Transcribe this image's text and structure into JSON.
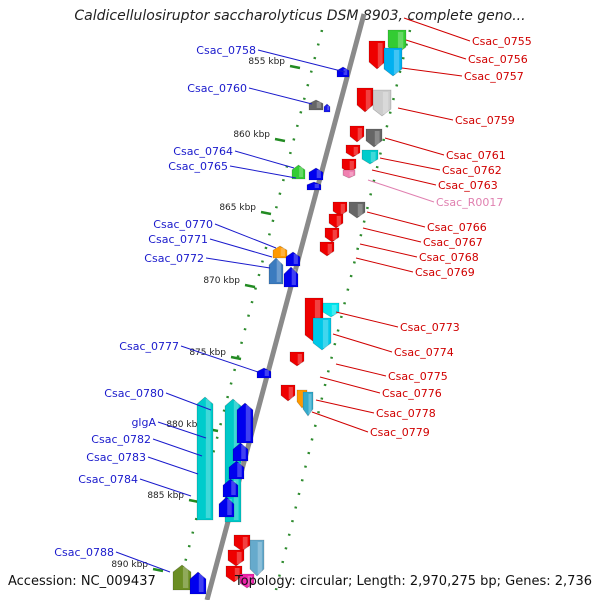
{
  "title": "Caldicellulosiruptor saccharolyticus DSM 8903, complete geno...",
  "footer": {
    "accession": "Accession: NC_009437",
    "topology": "Topology: circular; Length: 2,970,275 bp; Genes: 2,736"
  },
  "colors": {
    "left_label": "#1a1acc",
    "right_label": "#d00000",
    "rna_label": "#e080b0",
    "backbone": "#808080",
    "tick": "#228b22"
  },
  "kbp_ticks": [
    "855 kbp",
    "860 kbp",
    "865 kbp",
    "870 kbp",
    "875 kbp",
    "880 kbp",
    "885 kbp",
    "890 kbp"
  ],
  "left_labels": [
    "Csac_0758",
    "Csac_0760",
    "Csac_0764",
    "Csac_0765",
    "Csac_0770",
    "Csac_0771",
    "Csac_0772",
    "Csac_0777",
    "Csac_0780",
    "glgA",
    "Csac_0782",
    "Csac_0783",
    "Csac_0784",
    "Csac_0788"
  ],
  "right_labels": [
    "Csac_0755",
    "Csac_0756",
    "Csac_0757",
    "Csac_0759",
    "Csac_0761",
    "Csac_0762",
    "Csac_0763",
    "Csac_R0017",
    "Csac_0766",
    "Csac_0767",
    "Csac_0768",
    "Csac_0769",
    "Csac_0773",
    "Csac_0774",
    "Csac_0775",
    "Csac_0776",
    "Csac_0778",
    "Csac_0779"
  ]
}
